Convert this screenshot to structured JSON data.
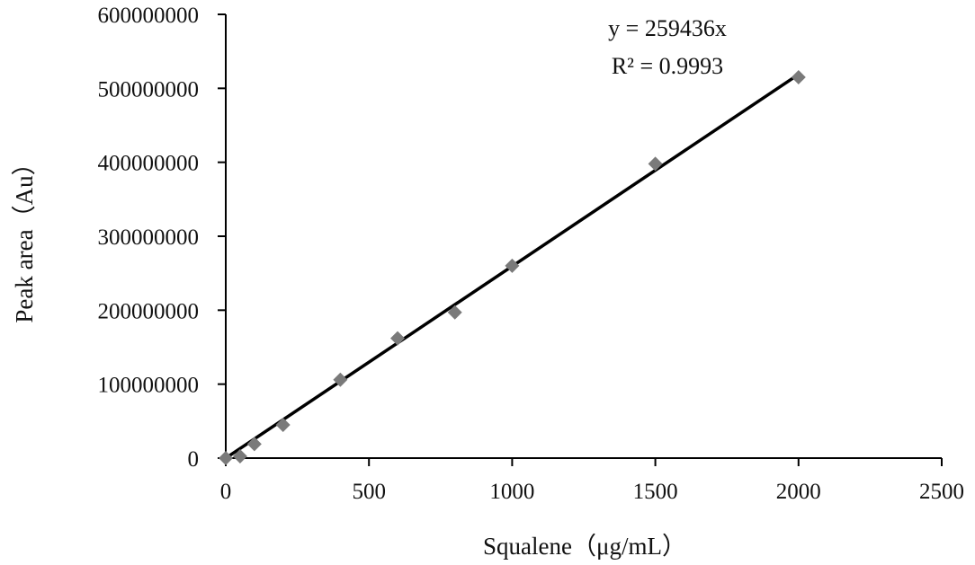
{
  "chart_data": {
    "type": "scatter",
    "xlabel": "Squalene（μg/mL）",
    "ylabel": "Peak area（Au）",
    "xlim": [
      0,
      2500
    ],
    "ylim": [
      0,
      600000000
    ],
    "x_ticks": [
      "0",
      "500",
      "1000",
      "1500",
      "2000",
      "2500"
    ],
    "y_ticks": [
      "0",
      "100000000",
      "200000000",
      "300000000",
      "400000000",
      "500000000",
      "600000000"
    ],
    "grid": false,
    "legend": "none",
    "marker": "diamond",
    "marker_color": "#7a7a7a",
    "line_color": "#000000",
    "series": [
      {
        "x": [
          0,
          50,
          100,
          200,
          400,
          600,
          800,
          1000,
          1500,
          2000
        ],
        "y": [
          0,
          2500000,
          19000000,
          45000000,
          106000000,
          162000000,
          197000000,
          260000000,
          398000000,
          515000000
        ]
      }
    ],
    "trendline": {
      "type": "linear",
      "slope": 259436,
      "intercept": 0,
      "x_range": [
        0,
        2000
      ]
    },
    "annotations": {
      "equation": "y = 259436x",
      "r_squared": "R² = 0.9993"
    }
  }
}
